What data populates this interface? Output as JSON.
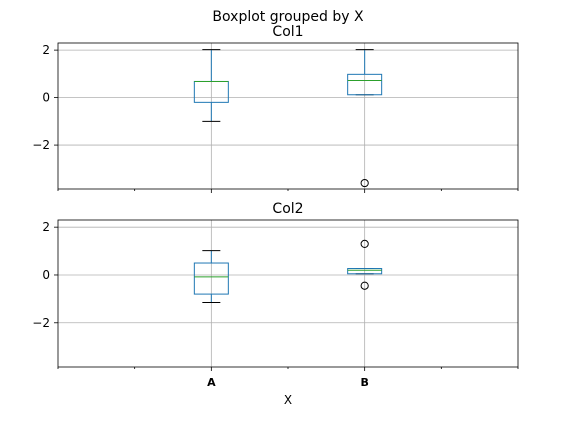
{
  "figure": {
    "suptitle": "Boxplot grouped by X",
    "xlabel": "X"
  },
  "style": {
    "box_color": "#1f77b4",
    "median_color": "#2ca02c",
    "grid_color": "#b0b0b0"
  },
  "chart_data": [
    {
      "type": "box",
      "title": "Col1",
      "categories": [
        "A",
        "B"
      ],
      "ylim": [
        -3.85,
        2.3
      ],
      "yticks": [
        2,
        0,
        -2
      ],
      "ytick_labels": [
        "2",
        "0",
        "−2"
      ],
      "grid": true,
      "boxes": [
        {
          "category": "A",
          "whislo": -1.0,
          "q1": -0.2,
          "med": 0.68,
          "q3": 0.68,
          "whishi": 2.02,
          "fliers": []
        },
        {
          "category": "B",
          "whislo": 0.12,
          "q1": 0.12,
          "med": 0.72,
          "q3": 0.98,
          "whishi": 2.02,
          "fliers": [
            -3.6
          ]
        }
      ]
    },
    {
      "type": "box",
      "title": "Col2",
      "categories": [
        "A",
        "B"
      ],
      "ylim": [
        -3.85,
        2.3
      ],
      "yticks": [
        2,
        0,
        -2
      ],
      "ytick_labels": [
        "2",
        "0",
        "−2"
      ],
      "grid": true,
      "boxes": [
        {
          "category": "A",
          "whislo": -1.15,
          "q1": -0.8,
          "med": -0.08,
          "q3": 0.5,
          "whishi": 1.02,
          "fliers": []
        },
        {
          "category": "B",
          "whislo": 0.05,
          "q1": 0.05,
          "med": 0.2,
          "q3": 0.27,
          "whishi": 0.27,
          "fliers": [
            1.3,
            -0.45
          ]
        }
      ]
    }
  ]
}
